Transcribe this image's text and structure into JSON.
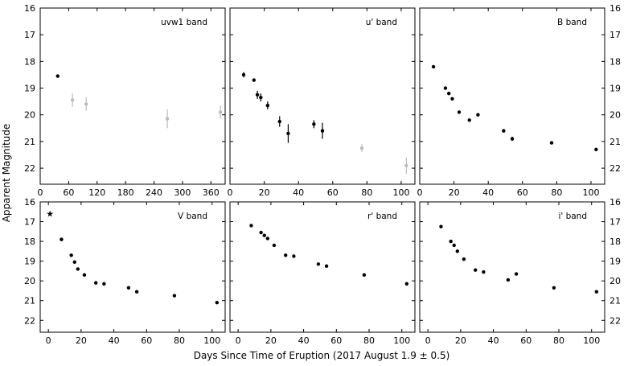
{
  "chart_data": {
    "type": "scatter",
    "xlabel": "Days Since Time of Eruption (2017 August 1.9 ± 0.5)",
    "ylabel": "Apparent Magnitude",
    "ylim": [
      16,
      22.6
    ],
    "y_inverted": true,
    "yticks": [
      "16",
      "17",
      "18",
      "19",
      "20",
      "21",
      "22"
    ],
    "colors": {
      "detection": "#000000",
      "faint": "#bbbbbb"
    },
    "panels": [
      {
        "band": "uvw1 band",
        "xlim": [
          0,
          390
        ],
        "xticks": [
          "0",
          "60",
          "120",
          "180",
          "240",
          "300",
          "360"
        ],
        "points": [
          {
            "x": 37,
            "y": 18.55,
            "err": 0.05
          },
          {
            "x": 68,
            "y": 19.45,
            "err": 0.25,
            "faint": true
          },
          {
            "x": 97,
            "y": 19.6,
            "err": 0.25,
            "faint": true
          },
          {
            "x": 268,
            "y": 20.15,
            "err": 0.35,
            "faint": true
          },
          {
            "x": 380,
            "y": 19.9,
            "err": 0.25,
            "faint": true
          }
        ]
      },
      {
        "band": "u' band",
        "xlim": [
          0,
          108
        ],
        "xticks": [
          "0",
          "20",
          "40",
          "60",
          "80",
          "100"
        ],
        "points": [
          {
            "x": 8,
            "y": 18.5,
            "err": 0.1
          },
          {
            "x": 14,
            "y": 18.7,
            "err": 0.05
          },
          {
            "x": 16,
            "y": 19.25,
            "err": 0.15
          },
          {
            "x": 18,
            "y": 19.35,
            "err": 0.15
          },
          {
            "x": 22,
            "y": 19.65,
            "err": 0.15
          },
          {
            "x": 29,
            "y": 20.25,
            "err": 0.2
          },
          {
            "x": 34,
            "y": 20.7,
            "err": 0.35
          },
          {
            "x": 49,
            "y": 20.35,
            "err": 0.15
          },
          {
            "x": 54,
            "y": 20.6,
            "err": 0.3
          },
          {
            "x": 77,
            "y": 21.25,
            "err": 0.15,
            "faint": true
          },
          {
            "x": 103,
            "y": 21.9,
            "err": 0.3,
            "faint": true
          }
        ]
      },
      {
        "band": "B band",
        "xlim": [
          0,
          108
        ],
        "xticks": [
          "0",
          "20",
          "40",
          "60",
          "80",
          "100"
        ],
        "points": [
          {
            "x": 8,
            "y": 18.2,
            "err": 0.03
          },
          {
            "x": 15,
            "y": 19.0,
            "err": 0.03
          },
          {
            "x": 17,
            "y": 19.2,
            "err": 0.03
          },
          {
            "x": 19,
            "y": 19.4,
            "err": 0.03
          },
          {
            "x": 23,
            "y": 19.9,
            "err": 0.03
          },
          {
            "x": 29,
            "y": 20.2,
            "err": 0.05
          },
          {
            "x": 34,
            "y": 20.0,
            "err": 0.05
          },
          {
            "x": 49,
            "y": 20.6,
            "err": 0.05
          },
          {
            "x": 54,
            "y": 20.9,
            "err": 0.08
          },
          {
            "x": 77,
            "y": 21.05,
            "err": 0.03
          },
          {
            "x": 103,
            "y": 21.3,
            "err": 0.03
          }
        ]
      },
      {
        "band": "V band",
        "xlim": [
          -5,
          108
        ],
        "xticks": [
          "0",
          "20",
          "40",
          "60",
          "80",
          "100"
        ],
        "marker": {
          "x": 1,
          "y": 16.6
        },
        "points": [
          {
            "x": 8,
            "y": 17.9,
            "err": 0.03
          },
          {
            "x": 14,
            "y": 18.7,
            "err": 0.03
          },
          {
            "x": 16,
            "y": 19.05,
            "err": 0.03
          },
          {
            "x": 18,
            "y": 19.4,
            "err": 0.03
          },
          {
            "x": 22,
            "y": 19.7,
            "err": 0.03
          },
          {
            "x": 29,
            "y": 20.1,
            "err": 0.05
          },
          {
            "x": 34,
            "y": 20.15,
            "err": 0.08
          },
          {
            "x": 49,
            "y": 20.35,
            "err": 0.03
          },
          {
            "x": 54,
            "y": 20.55,
            "err": 0.06
          },
          {
            "x": 77,
            "y": 20.75,
            "err": 0.03
          },
          {
            "x": 103,
            "y": 21.1,
            "err": 0.05
          }
        ]
      },
      {
        "band": "r' band",
        "xlim": [
          -5,
          108
        ],
        "xticks": [
          "0",
          "20",
          "40",
          "60",
          "80",
          "100"
        ],
        "points": [
          {
            "x": 8,
            "y": 17.2,
            "err": 0.03
          },
          {
            "x": 14,
            "y": 17.55,
            "err": 0.03
          },
          {
            "x": 16,
            "y": 17.7,
            "err": 0.03
          },
          {
            "x": 18,
            "y": 17.85,
            "err": 0.03
          },
          {
            "x": 22,
            "y": 18.2,
            "err": 0.03
          },
          {
            "x": 29,
            "y": 18.7,
            "err": 0.03
          },
          {
            "x": 34,
            "y": 18.75,
            "err": 0.03
          },
          {
            "x": 49,
            "y": 19.15,
            "err": 0.03
          },
          {
            "x": 54,
            "y": 19.25,
            "err": 0.03
          },
          {
            "x": 77,
            "y": 19.7,
            "err": 0.03
          },
          {
            "x": 103,
            "y": 20.15,
            "err": 0.03
          }
        ]
      },
      {
        "band": "i' band",
        "xlim": [
          -5,
          108
        ],
        "xticks": [
          "0",
          "20",
          "40",
          "60",
          "80",
          "100"
        ],
        "points": [
          {
            "x": 8,
            "y": 17.25,
            "err": 0.03
          },
          {
            "x": 14,
            "y": 18.0,
            "err": 0.03
          },
          {
            "x": 16,
            "y": 18.2,
            "err": 0.03
          },
          {
            "x": 18,
            "y": 18.5,
            "err": 0.03
          },
          {
            "x": 22,
            "y": 18.9,
            "err": 0.03
          },
          {
            "x": 29,
            "y": 19.45,
            "err": 0.03
          },
          {
            "x": 34,
            "y": 19.55,
            "err": 0.03
          },
          {
            "x": 49,
            "y": 19.95,
            "err": 0.03
          },
          {
            "x": 54,
            "y": 19.65,
            "err": 0.06
          },
          {
            "x": 77,
            "y": 20.35,
            "err": 0.05
          },
          {
            "x": 103,
            "y": 20.55,
            "err": 0.08
          }
        ]
      }
    ]
  }
}
